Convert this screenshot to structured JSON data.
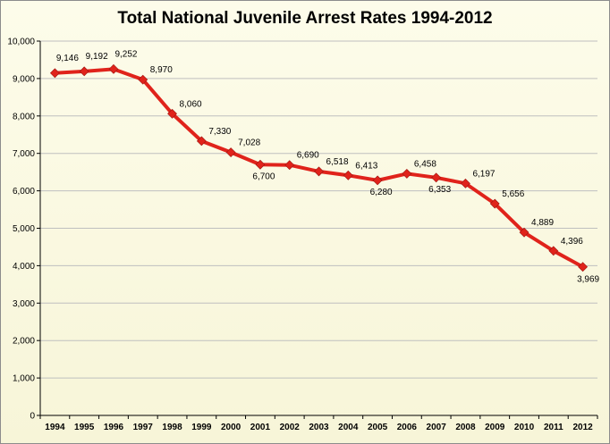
{
  "chart_data": {
    "type": "line",
    "title": "Total National Juvenile Arrest Rates 1994-2012",
    "xlabel": "",
    "ylabel": "",
    "ylim": [
      0,
      10000
    ],
    "yticks": [
      "0",
      "1,000",
      "2,000",
      "3,000",
      "4,000",
      "5,000",
      "6,000",
      "7,000",
      "8,000",
      "9,000",
      "10,000"
    ],
    "categories": [
      "1994",
      "1995",
      "1996",
      "1997",
      "1998",
      "1999",
      "2000",
      "2001",
      "2002",
      "2003",
      "2004",
      "2005",
      "2006",
      "2007",
      "2008",
      "2009",
      "2010",
      "2011",
      "2012"
    ],
    "series": [
      {
        "values": [
          9146,
          9192,
          9252,
          8970,
          8060,
          7330,
          7028,
          6700,
          6690,
          6518,
          6413,
          6280,
          6458,
          6353,
          6197,
          5656,
          4889,
          4396,
          3969
        ],
        "labels": [
          "9,146",
          "9,192",
          "9,252",
          "8,970",
          "8,060",
          "7,330",
          "7,028",
          "6,700",
          "6,690",
          "6,518",
          "6,413",
          "6,280",
          "6,458",
          "6,353",
          "6,197",
          "5,656",
          "4,889",
          "4,396",
          "3,969"
        ],
        "color": "#e0231b"
      }
    ],
    "grid": true,
    "legend": "none",
    "colors": {
      "line": "#e0231b",
      "grid": "#bfbfbf",
      "axis": "#000000",
      "background": "#fbfae3"
    }
  }
}
